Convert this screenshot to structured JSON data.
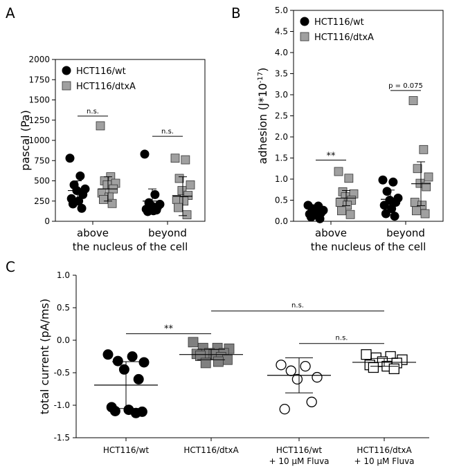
{
  "chart_data": [
    {
      "type": "scatter",
      "panel_label": "A",
      "xlabel": "the nucleus of the cell",
      "ylabel": "pascal (Pa)",
      "categories": [
        "above",
        "beyond"
      ],
      "ylim": [
        0,
        2000
      ],
      "yticks": [
        "0",
        "250",
        "500",
        "750",
        "1000",
        "1250",
        "1500",
        "1750",
        "2000"
      ],
      "legend_position": "top-left",
      "series": [
        {
          "name": "HCT116/wt",
          "marker": "filled-circle",
          "color": "#000000",
          "points": [
            [
              1,
              780
            ],
            [
              1,
              560
            ],
            [
              1,
              450
            ],
            [
              1,
              400
            ],
            [
              1,
              380
            ],
            [
              1,
              330
            ],
            [
              1,
              280
            ],
            [
              1,
              250
            ],
            [
              1,
              215
            ],
            [
              1,
              160
            ],
            [
              2,
              830
            ],
            [
              2,
              330
            ],
            [
              2,
              230
            ],
            [
              2,
              210
            ],
            [
              2,
              190
            ],
            [
              2,
              180
            ],
            [
              2,
              150
            ],
            [
              2,
              130
            ],
            [
              2,
              120
            ],
            [
              2,
              140
            ]
          ],
          "mean": [
            380,
            250
          ],
          "sd": [
            120,
            150
          ]
        },
        {
          "name": "HCT116/dtxA",
          "marker": "gray-square",
          "color": "#a0a0a0",
          "points": [
            [
              1,
              1180
            ],
            [
              1,
              550
            ],
            [
              1,
              500
            ],
            [
              1,
              470
            ],
            [
              1,
              450
            ],
            [
              1,
              400
            ],
            [
              1,
              350
            ],
            [
              1,
              300
            ],
            [
              1,
              270
            ],
            [
              1,
              220
            ],
            [
              2,
              780
            ],
            [
              2,
              760
            ],
            [
              2,
              530
            ],
            [
              2,
              450
            ],
            [
              2,
              380
            ],
            [
              2,
              320
            ],
            [
              2,
              270
            ],
            [
              2,
              250
            ],
            [
              2,
              170
            ],
            [
              2,
              80
            ]
          ],
          "mean": [
            400,
            310
          ],
          "sd": [
            150,
            240
          ]
        }
      ],
      "annotations": [
        {
          "text": "n.s.",
          "between": [
            1,
            1
          ],
          "y": 1300
        },
        {
          "text": "n.s.",
          "between": [
            2,
            2
          ],
          "y": 1050
        }
      ]
    },
    {
      "type": "scatter",
      "panel_label": "B",
      "xlabel": "the nucleus of the cell",
      "ylabel": "adhesion (J*10",
      "ylabel_sup": "-17",
      "ylabel_end": ")",
      "categories": [
        "above",
        "beyond"
      ],
      "ylim": [
        0,
        5.0
      ],
      "yticks": [
        "0.0",
        "0.5",
        "1.0",
        "1.5",
        "2.0",
        "2.5",
        "3.0",
        "3.5",
        "4.0",
        "4.5",
        "5.0"
      ],
      "legend_position": "top-left",
      "series": [
        {
          "name": "HCT116/wt",
          "marker": "filled-circle",
          "color": "#000000",
          "points": [
            [
              1,
              0.38
            ],
            [
              1,
              0.36
            ],
            [
              1,
              0.3
            ],
            [
              1,
              0.26
            ],
            [
              1,
              0.24
            ],
            [
              1,
              0.2
            ],
            [
              1,
              0.17
            ],
            [
              1,
              0.14
            ],
            [
              1,
              0.1
            ],
            [
              1,
              0.06
            ],
            [
              2,
              0.98
            ],
            [
              2,
              0.93
            ],
            [
              2,
              0.71
            ],
            [
              2,
              0.55
            ],
            [
              2,
              0.5
            ],
            [
              2,
              0.45
            ],
            [
              2,
              0.38
            ],
            [
              2,
              0.3
            ],
            [
              2,
              0.18
            ],
            [
              2,
              0.12
            ]
          ],
          "mean": [
            0.22,
            0.52
          ],
          "sd": [
            0.1,
            0.22
          ]
        },
        {
          "name": "HCT116/dtxA",
          "marker": "gray-square",
          "color": "#a0a0a0",
          "points": [
            [
              1,
              1.18
            ],
            [
              1,
              1.02
            ],
            [
              1,
              0.7
            ],
            [
              1,
              0.65
            ],
            [
              1,
              0.58
            ],
            [
              1,
              0.5
            ],
            [
              1,
              0.45
            ],
            [
              1,
              0.38
            ],
            [
              1,
              0.25
            ],
            [
              1,
              0.16
            ],
            [
              2,
              2.86
            ],
            [
              2,
              1.7
            ],
            [
              2,
              1.25
            ],
            [
              2,
              1.05
            ],
            [
              2,
              0.9
            ],
            [
              2,
              0.82
            ],
            [
              2,
              0.45
            ],
            [
              2,
              0.38
            ],
            [
              2,
              0.25
            ],
            [
              2,
              0.18
            ]
          ],
          "mean": [
            0.55,
            0.89
          ],
          "sd": [
            0.18,
            0.52
          ]
        }
      ],
      "annotations": [
        {
          "text": "**",
          "between": [
            1,
            1
          ],
          "y": 1.45
        },
        {
          "text": "p = 0.075",
          "between": [
            2,
            2
          ],
          "y": 3.1
        }
      ]
    },
    {
      "type": "scatter",
      "panel_label": "C",
      "xlabel": "",
      "ylabel": "total current (pA/ms)",
      "categories": [
        "HCT116/wt",
        "HCT116/dtxA",
        "HCT116/wt\n+ 10 µM Fluva",
        "HCT116/dtxA\n+ 10 µM Fluva"
      ],
      "ylim": [
        -1.5,
        1.0
      ],
      "yticks": [
        "-1.5",
        "-1.0",
        "-0.5",
        "0.0",
        "0.5",
        "1.0"
      ],
      "series": [
        {
          "name": "HCT116/wt",
          "marker": "filled-circle",
          "color": "#000000",
          "points": [
            -0.22,
            -0.25,
            -0.32,
            -0.34,
            -0.45,
            -0.6,
            -1.03,
            -1.07,
            -1.09,
            -1.12,
            -1.1
          ],
          "mean": -0.69,
          "sd": 0.36
        },
        {
          "name": "HCT116/dtxA",
          "marker": "gray-square",
          "color": "#808080",
          "points": [
            -0.03,
            -0.12,
            -0.12,
            -0.13,
            -0.2,
            -0.2,
            -0.21,
            -0.22,
            -0.24,
            -0.26,
            -0.3,
            -0.35,
            -0.33
          ],
          "mean": -0.22,
          "sd": 0.08
        },
        {
          "name": "HCT116/wt + 10 µM Fluva",
          "marker": "open-circle",
          "color": "#000000",
          "points": [
            -0.38,
            -0.4,
            -0.47,
            -0.57,
            -0.6,
            -0.95,
            -1.06
          ],
          "mean": -0.54,
          "sd": 0.27
        },
        {
          "name": "HCT116/dtxA + 10 µM Fluva",
          "marker": "open-square",
          "color": "#000000",
          "points": [
            -0.22,
            -0.25,
            -0.27,
            -0.3,
            -0.33,
            -0.35,
            -0.38,
            -0.4,
            -0.42,
            -0.44
          ],
          "mean": -0.34,
          "sd": 0.06
        }
      ],
      "annotations": [
        {
          "text": "**",
          "between": [
            1,
            2
          ],
          "y": 0.1
        },
        {
          "text": "n.s.",
          "between": [
            2,
            4
          ],
          "y": 0.45
        },
        {
          "text": "n.s.",
          "between": [
            3,
            4
          ],
          "y": -0.05
        }
      ]
    }
  ]
}
